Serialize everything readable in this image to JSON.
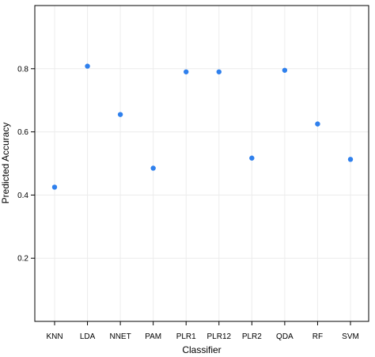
{
  "chart_data": {
    "type": "scatter",
    "xlabel": "Classifier",
    "ylabel": "Predicted Accuracy",
    "categories": [
      "KNN",
      "LDA",
      "NNET",
      "PAM",
      "PLR1",
      "PLR12",
      "PLR2",
      "QDA",
      "RF",
      "SVM"
    ],
    "values": [
      0.425,
      0.808,
      0.655,
      0.485,
      0.79,
      0.79,
      0.517,
      0.795,
      0.625,
      0.513
    ],
    "y_ticks": [
      0.2,
      0.4,
      0.6,
      0.8
    ],
    "y_tick_labels": [
      "0.2",
      "0.4",
      "0.6",
      "0.8"
    ],
    "ylim": [
      0.0,
      1.0
    ],
    "grid": true,
    "colors": {
      "point": "#2f80ed",
      "grid": "#ececec",
      "axis": "#000000"
    }
  }
}
